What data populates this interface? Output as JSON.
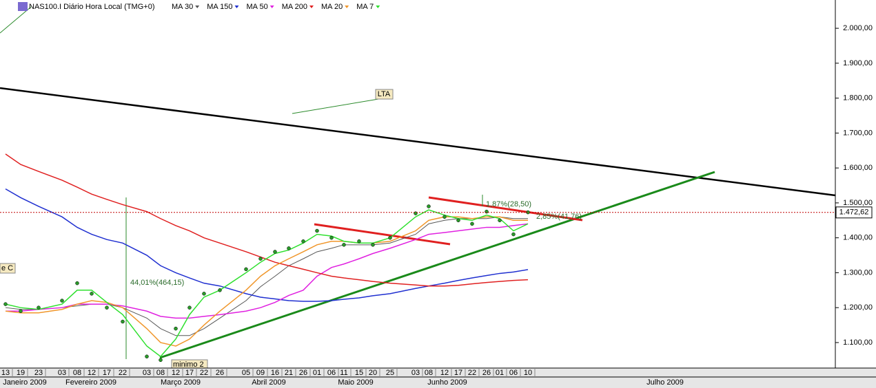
{
  "chart_data": {
    "type": "line",
    "title": "NAS100.I Diário Hora Local (TMG+0)",
    "categories": [
      "13",
      "19",
      "23",
      "03",
      "08",
      "12",
      "17",
      "22",
      "03",
      "08",
      "12",
      "17",
      "22",
      "26",
      "05",
      "09",
      "16",
      "21",
      "26",
      "01",
      "06",
      "11",
      "15",
      "20",
      "25",
      "03",
      "08",
      "12",
      "17",
      "22",
      "26",
      "01",
      "06",
      "10"
    ],
    "months": [
      "Janeiro 2009",
      "Fevereiro 2009",
      "Março 2009",
      "Abril 2009",
      "Maio 2009",
      "Junho 2009",
      "Julho 2009"
    ],
    "price": {
      "color": "#1a1a1a",
      "values": [
        1210,
        1190,
        1200,
        1220,
        1270,
        1240,
        1200,
        1160,
        1060,
        1050,
        1140,
        1200,
        1240,
        1250,
        1310,
        1340,
        1360,
        1370,
        1390,
        1420,
        1400,
        1380,
        1390,
        1380,
        1400,
        1470,
        1490,
        1460,
        1450,
        1440,
        1475,
        1450,
        1410,
        1473
      ]
    },
    "series": [
      {
        "name": "MA 30",
        "color": "#555555",
        "values": [
          1200,
          1195,
          1195,
          1200,
          1205,
          1210,
          1210,
          1200,
          1170,
          1140,
          1120,
          1120,
          1140,
          1170,
          1220,
          1260,
          1290,
          1320,
          1340,
          1360,
          1370,
          1380,
          1380,
          1380,
          1385,
          1410,
          1440,
          1450,
          1455,
          1455,
          1455,
          1460,
          1455,
          1455
        ]
      },
      {
        "name": "MA 150",
        "color": "#1f2fd0",
        "values": [
          1540,
          1515,
          1490,
          1460,
          1430,
          1410,
          1395,
          1385,
          1350,
          1320,
          1300,
          1285,
          1270,
          1262,
          1240,
          1230,
          1225,
          1220,
          1218,
          1218,
          1220,
          1224,
          1228,
          1234,
          1240,
          1255,
          1262,
          1270,
          1278,
          1285,
          1292,
          1298,
          1302,
          1309
        ]
      },
      {
        "name": "MA 50",
        "color": "#e020e0",
        "values": [
          1190,
          1190,
          1195,
          1200,
          1210,
          1210,
          1210,
          1205,
          1190,
          1175,
          1170,
          1170,
          1175,
          1180,
          1190,
          1200,
          1215,
          1235,
          1250,
          1290,
          1315,
          1325,
          1340,
          1355,
          1370,
          1395,
          1410,
          1415,
          1420,
          1425,
          1430,
          1430,
          1435,
          1440
        ]
      },
      {
        "name": "MA 200",
        "color": "#e02020",
        "values": [
          1640,
          1610,
          1590,
          1565,
          1545,
          1525,
          1510,
          1495,
          1475,
          1455,
          1435,
          1420,
          1400,
          1385,
          1360,
          1345,
          1330,
          1320,
          1310,
          1300,
          1290,
          1285,
          1280,
          1275,
          1270,
          1265,
          1262,
          1262,
          1264,
          1268,
          1272,
          1275,
          1278,
          1280
        ]
      },
      {
        "name": "MA 20",
        "color": "#f0962a",
        "values": [
          1190,
          1185,
          1185,
          1195,
          1210,
          1220,
          1215,
          1200,
          1140,
          1100,
          1090,
          1110,
          1150,
          1190,
          1250,
          1290,
          1320,
          1340,
          1360,
          1380,
          1390,
          1390,
          1385,
          1385,
          1390,
          1420,
          1450,
          1460,
          1460,
          1455,
          1460,
          1460,
          1450,
          1450
        ]
      },
      {
        "name": "MA 7",
        "color": "#2ee02e",
        "values": [
          1210,
          1200,
          1195,
          1210,
          1250,
          1250,
          1215,
          1180,
          1090,
          1060,
          1110,
          1180,
          1230,
          1250,
          1300,
          1330,
          1355,
          1365,
          1385,
          1410,
          1405,
          1390,
          1385,
          1385,
          1400,
          1460,
          1480,
          1465,
          1455,
          1450,
          1465,
          1455,
          1420,
          1440
        ]
      }
    ],
    "last_price": {
      "value": 1472.62,
      "label": "1.472,62"
    },
    "annotations": [
      "LTA",
      "minimo 2",
      "44,01%(464,15)",
      "1,87%(28,50)",
      "2,85%(41,76)",
      "e C"
    ],
    "ylim": [
      1027,
      2081
    ],
    "yticks": [
      {
        "value": 1100,
        "label": "1.100,00"
      },
      {
        "value": 1200,
        "label": "1.200,00"
      },
      {
        "value": 1300,
        "label": "1.300,00"
      },
      {
        "value": 1400,
        "label": "1.400,00"
      },
      {
        "value": 1500,
        "label": "1.500,00"
      },
      {
        "value": 1600,
        "label": "1.600,00"
      },
      {
        "value": 1700,
        "label": "1.700,00"
      },
      {
        "value": 1800,
        "label": "1.800,00"
      },
      {
        "value": 1900,
        "label": "1.900,00"
      },
      {
        "value": 2000,
        "label": "2.000,00"
      }
    ]
  }
}
